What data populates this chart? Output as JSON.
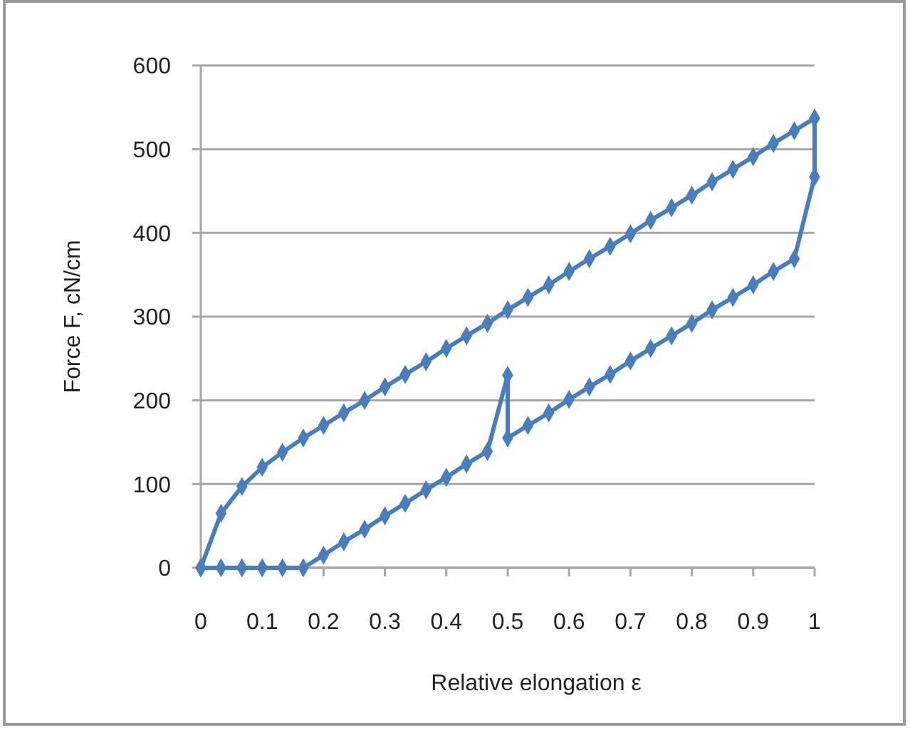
{
  "chart_data": {
    "type": "line",
    "xlabel": "Relative elongation ε",
    "ylabel": "Force F, cN/cm",
    "xlim": [
      0,
      1
    ],
    "ylim": [
      0,
      600
    ],
    "xticks": [
      0,
      0.1,
      0.2,
      0.3,
      0.4,
      0.5,
      0.6,
      0.7,
      0.8,
      0.9,
      1
    ],
    "yticks": [
      0,
      100,
      200,
      300,
      400,
      500,
      600
    ],
    "grid": "y",
    "marker": "diamond",
    "line_style": "solid",
    "series": [
      {
        "color": "#4a7ebb",
        "x": [
          0,
          0.033,
          0.067,
          0.1,
          0.133,
          0.167,
          0.2,
          0.233,
          0.267,
          0.3,
          0.333,
          0.367,
          0.4,
          0.433,
          0.467,
          0.5,
          0.533,
          0.567,
          0.6,
          0.633,
          0.667,
          0.7,
          0.733,
          0.767,
          0.8,
          0.833,
          0.867,
          0.9,
          0.933,
          0.967,
          1
        ],
        "values": [
          0,
          65,
          97,
          120,
          138,
          155,
          170,
          185,
          200,
          216,
          231,
          246,
          262,
          277,
          292,
          308,
          323,
          338,
          354,
          369,
          384,
          399,
          415,
          430,
          445,
          461,
          476,
          491,
          507,
          522,
          537
        ]
      },
      {
        "color": "#4a7ebb",
        "x": [
          1,
          1,
          0.967,
          0.933,
          0.9,
          0.867,
          0.833,
          0.8,
          0.767,
          0.733,
          0.7,
          0.667,
          0.633,
          0.6,
          0.567,
          0.533,
          0.5,
          0.5,
          0.467,
          0.433,
          0.4,
          0.367,
          0.333,
          0.3,
          0.267,
          0.233,
          0.2,
          0.167,
          0.133,
          0.1,
          0.067,
          0.033,
          0
        ],
        "values": [
          537,
          467,
          369,
          354,
          338,
          323,
          308,
          292,
          277,
          262,
          247,
          231,
          216,
          201,
          185,
          170,
          155,
          230,
          139,
          124,
          108,
          93,
          77,
          62,
          46,
          31,
          15,
          0,
          0,
          0,
          0,
          0,
          0
        ]
      }
    ]
  }
}
